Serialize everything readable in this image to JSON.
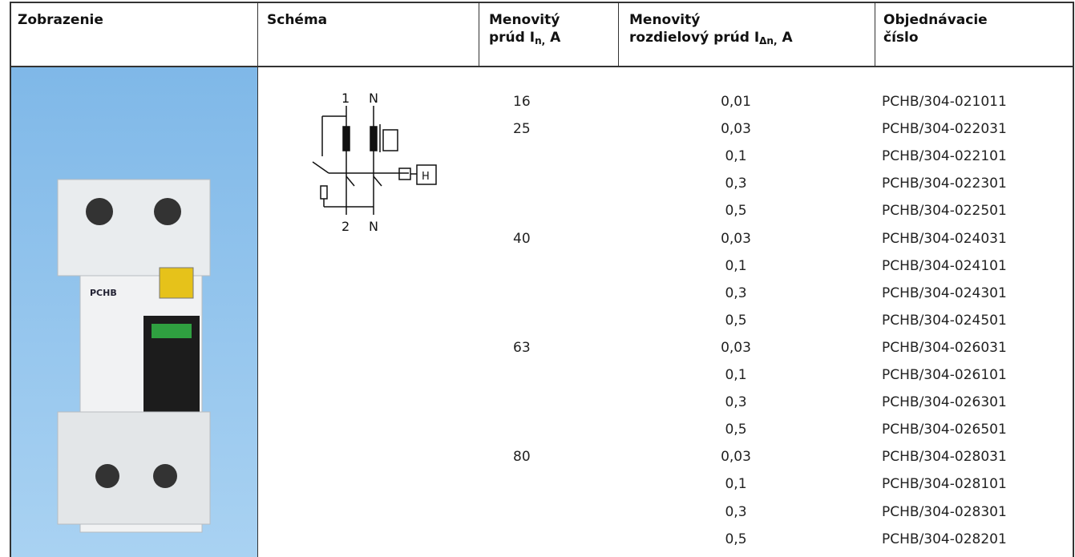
{
  "header": {
    "image": "Zobrazenie",
    "schema": "Schéma",
    "rated": {
      "line1": "Menovitý",
      "line2": "prúd I",
      "sub": "n,",
      "tail": " A"
    },
    "residual": {
      "line1": "Menovitý",
      "line2": "rozdielový prúd I",
      "sub": "Δn,",
      "tail": " A"
    },
    "order": {
      "line1": "Objednávacie",
      "line2": "číslo"
    }
  },
  "image_label": "PCHB",
  "schema_labels": {
    "top_left": "1",
    "top_right": "N",
    "bottom_left": "2",
    "bottom_right": "N",
    "box": "H"
  },
  "groups": [
    {
      "rated": "16",
      "rows": [
        [
          "0,01",
          "PCHB/304-021011"
        ]
      ]
    },
    {
      "rated": "25",
      "rows": [
        [
          "0,03",
          "PCHB/304-022031"
        ],
        [
          "0,1",
          "PCHB/304-022101"
        ],
        [
          "0,3",
          "PCHB/304-022301"
        ],
        [
          "0,5",
          "PCHB/304-022501"
        ]
      ]
    },
    {
      "rated": "40",
      "rows": [
        [
          "0,03",
          "PCHB/304-024031"
        ],
        [
          "0,1",
          "PCHB/304-024101"
        ],
        [
          "0,3",
          "PCHB/304-024301"
        ],
        [
          "0,5",
          "PCHB/304-024501"
        ]
      ]
    },
    {
      "rated": "63",
      "rows": [
        [
          "0,03",
          "PCHB/304-026031"
        ],
        [
          "0,1",
          "PCHB/304-026101"
        ],
        [
          "0,3",
          "PCHB/304-026301"
        ],
        [
          "0,5",
          "PCHB/304-026501"
        ]
      ]
    },
    {
      "rated": "80",
      "rows": [
        [
          "0,03",
          "PCHB/304-028031"
        ],
        [
          "0,1",
          "PCHB/304-028101"
        ],
        [
          "0,3",
          "PCHB/304-028301"
        ],
        [
          "0,5",
          "PCHB/304-028201"
        ]
      ]
    }
  ]
}
